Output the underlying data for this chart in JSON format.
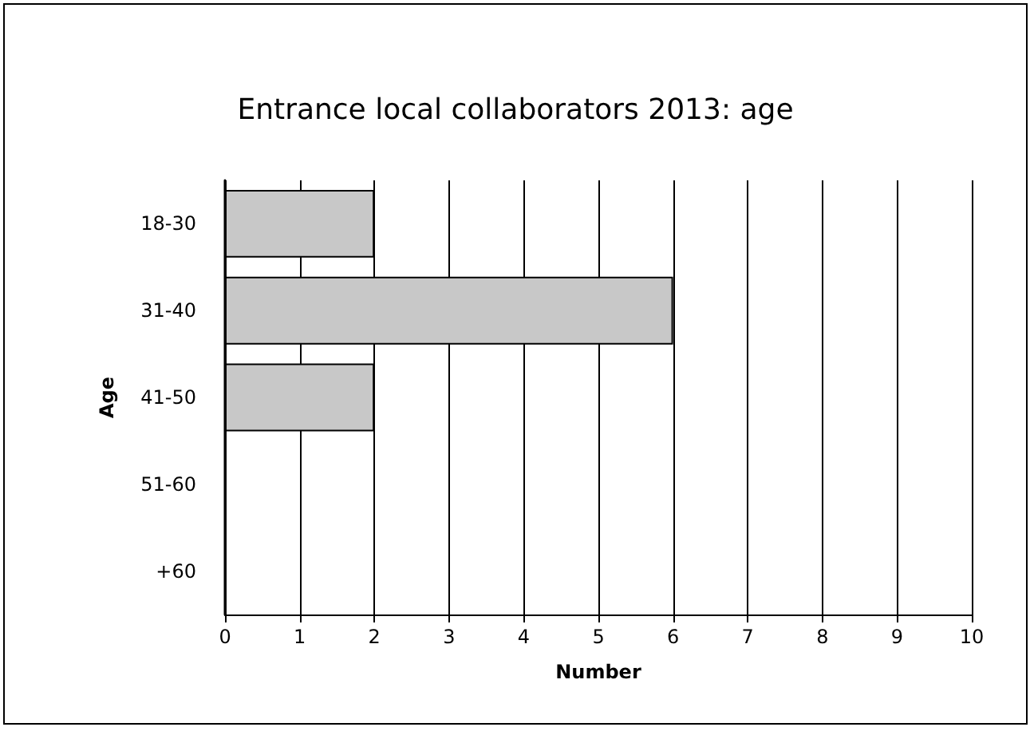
{
  "chart_data": {
    "type": "bar",
    "orientation": "horizontal",
    "title": "Entrance local collaborators 2013: age",
    "xlabel": "Number",
    "ylabel": "Age",
    "categories": [
      "18-30",
      "31-40",
      "41-50",
      "51-60",
      "+60"
    ],
    "values": [
      2,
      6,
      2,
      0,
      0
    ],
    "color": "#c8c8c8",
    "xlim": [
      0,
      10
    ],
    "xticks": [
      0,
      1,
      2,
      3,
      4,
      5,
      6,
      7,
      8,
      9,
      10
    ],
    "grid": "x"
  }
}
